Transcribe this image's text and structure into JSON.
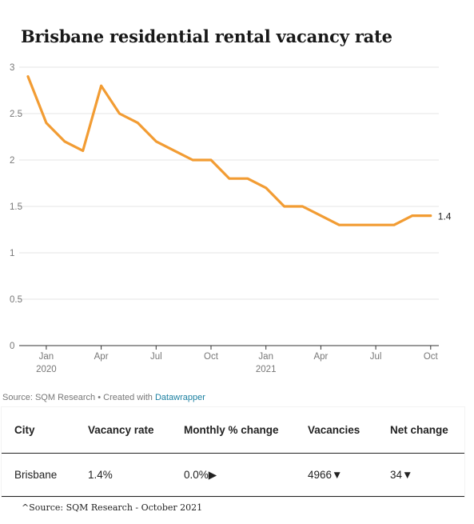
{
  "title": "Brisbane residential rental vacancy rate",
  "chart_data": {
    "type": "line",
    "title": "Brisbane residential rental vacancy rate",
    "x": [
      "2019-12",
      "2020-01",
      "2020-02",
      "2020-03",
      "2020-04",
      "2020-05",
      "2020-06",
      "2020-07",
      "2020-08",
      "2020-09",
      "2020-10",
      "2020-11",
      "2020-12",
      "2021-01",
      "2021-02",
      "2021-03",
      "2021-04",
      "2021-05",
      "2021-06",
      "2021-07",
      "2021-08",
      "2021-09",
      "2021-10"
    ],
    "series": [
      {
        "values": [
          2.9,
          2.4,
          2.2,
          2.1,
          2.8,
          2.5,
          2.4,
          2.2,
          2.1,
          2.0,
          2.0,
          1.8,
          1.8,
          1.7,
          1.5,
          1.5,
          1.4,
          1.3,
          1.3,
          1.3,
          1.3,
          1.4,
          1.4
        ]
      }
    ],
    "ylim": [
      0,
      3
    ],
    "yticks": [
      "0",
      "0.5",
      "1",
      "1.5",
      "2",
      "2.5",
      "3"
    ],
    "xticks": [
      {
        "at": "2020-01",
        "label": "Jan",
        "sublabel": "2020"
      },
      {
        "at": "2020-04",
        "label": "Apr"
      },
      {
        "at": "2020-07",
        "label": "Jul"
      },
      {
        "at": "2020-10",
        "label": "Oct"
      },
      {
        "at": "2021-01",
        "label": "Jan",
        "sublabel": "2021"
      },
      {
        "at": "2021-04",
        "label": "Apr"
      },
      {
        "at": "2021-07",
        "label": "Jul"
      },
      {
        "at": "2021-10",
        "label": "Oct"
      }
    ],
    "end_label": "1.4",
    "grid": true,
    "line_color": "#f29c33"
  },
  "source": {
    "prefix": "Source: SQM Research • Created with ",
    "link": "Datawrapper"
  },
  "table": {
    "headers": [
      "City",
      "Vacancy rate",
      "Monthly % change",
      "Vacancies",
      "Net change"
    ],
    "row": {
      "city": "Brisbane",
      "vacancy_rate": "1.4%",
      "monthly_change": "0.0%",
      "monthly_icon": "▶",
      "vacancies": "4966",
      "vacancies_icon": "▼",
      "net_change": "34",
      "net_change_icon": "▼"
    }
  },
  "footnote": "^Source: SQM Research - October 2021"
}
